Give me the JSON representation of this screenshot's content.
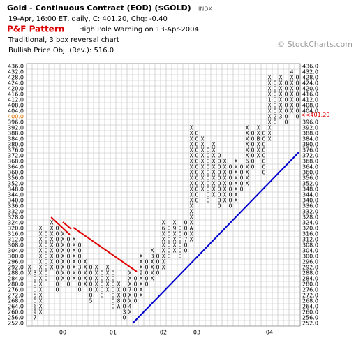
{
  "chart_data": {
    "type": "pnf",
    "title": "Gold - Continuous Contract (EOD) ($GOLD)",
    "exchange": "INDX",
    "subtitle": "19-Apr, 16:00 ET, daily, C: 401.20, Chg: -0.40",
    "pattern_label": "P&F Pattern",
    "pattern": "High Pole Warning on 13-Apr-2004",
    "method": "Traditional, 3 box reversal chart",
    "objective": "Bullish Price Obj. (Rev.): 516.0",
    "credit": "© StockCharts.com",
    "box_size": 4,
    "grid": true,
    "x_color": "#000000",
    "o_color": "#000000",
    "highlight_color": "#e07000",
    "last_price": {
      "value": 401.2,
      "label": "<<401.20"
    },
    "last_price_color": "#dd0000",
    "ylim": [
      252,
      436
    ],
    "yticks": [
      {
        "value": 252,
        "label": "252.0"
      },
      {
        "value": 256,
        "label": "256.0"
      },
      {
        "value": 260,
        "label": "260.0"
      },
      {
        "value": 264,
        "label": "264.0"
      },
      {
        "value": 268,
        "label": "268.0"
      },
      {
        "value": 272,
        "label": "272.0"
      },
      {
        "value": 276,
        "label": "276.0"
      },
      {
        "value": 280,
        "label": "280.0"
      },
      {
        "value": 284,
        "label": "284.0"
      },
      {
        "value": 288,
        "label": "288.0"
      },
      {
        "value": 292,
        "label": "292.0"
      },
      {
        "value": 296,
        "label": "296.0"
      },
      {
        "value": 300,
        "label": "300.0"
      },
      {
        "value": 304,
        "label": "304.0"
      },
      {
        "value": 308,
        "label": "308.0"
      },
      {
        "value": 312,
        "label": "312.0"
      },
      {
        "value": 316,
        "label": "316.0"
      },
      {
        "value": 320,
        "label": "320.0"
      },
      {
        "value": 324,
        "label": "324.0"
      },
      {
        "value": 328,
        "label": "328.0"
      },
      {
        "value": 332,
        "label": "332.0"
      },
      {
        "value": 336,
        "label": "336.0"
      },
      {
        "value": 340,
        "label": "340.0"
      },
      {
        "value": 344,
        "label": "344.0"
      },
      {
        "value": 348,
        "label": "348.0"
      },
      {
        "value": 352,
        "label": "352.0"
      },
      {
        "value": 356,
        "label": "356.0"
      },
      {
        "value": 360,
        "label": "360.0"
      },
      {
        "value": 364,
        "label": "364.0"
      },
      {
        "value": 368,
        "label": "368.0"
      },
      {
        "value": 372,
        "label": "372.0"
      },
      {
        "value": 376,
        "label": "376.0"
      },
      {
        "value": 380,
        "label": "380.0"
      },
      {
        "value": 384,
        "label": "384.0"
      },
      {
        "value": 388,
        "label": "388.0"
      },
      {
        "value": 392,
        "label": "392.0"
      },
      {
        "value": 396,
        "label": "396.0"
      },
      {
        "value": 400,
        "label": "400.0"
      },
      {
        "value": 404,
        "label": "404.0"
      },
      {
        "value": 408,
        "label": "408.0"
      },
      {
        "value": 412,
        "label": "412.0"
      },
      {
        "value": 416,
        "label": "416.0"
      },
      {
        "value": 420,
        "label": "420.0"
      },
      {
        "value": 424,
        "label": "424.0"
      },
      {
        "value": 428,
        "label": "428.0"
      },
      {
        "value": 432,
        "label": "432.0"
      },
      {
        "value": 436,
        "label": "436.0"
      }
    ],
    "columns": [
      {
        "kind": "X",
        "low": 288,
        "high": 292
      },
      {
        "kind": "O",
        "low": 256,
        "high": 288
      },
      {
        "kind": "X",
        "low": 260,
        "high": 320
      },
      {
        "kind": "O",
        "low": 284,
        "high": 316
      },
      {
        "kind": "X",
        "low": 292,
        "high": 324
      },
      {
        "kind": "O",
        "low": 276,
        "high": 320
      },
      {
        "kind": "X",
        "low": 284,
        "high": 316
      },
      {
        "kind": "O",
        "low": 280,
        "high": 312
      },
      {
        "kind": "X",
        "low": 284,
        "high": 312
      },
      {
        "kind": "O",
        "low": 276,
        "high": 308
      },
      {
        "kind": "X",
        "low": 280,
        "high": 296
      },
      {
        "kind": "O",
        "low": 268,
        "high": 292
      },
      {
        "kind": "X",
        "low": 276,
        "high": 292
      },
      {
        "kind": "O",
        "low": 272,
        "high": 288
      },
      {
        "kind": "X",
        "low": 276,
        "high": 292
      },
      {
        "kind": "O",
        "low": 264,
        "high": 288
      },
      {
        "kind": "X",
        "low": 264,
        "high": 280
      },
      {
        "kind": "O",
        "low": 256,
        "high": 276
      },
      {
        "kind": "X",
        "low": 260,
        "high": 288
      },
      {
        "kind": "O",
        "low": 268,
        "high": 284
      },
      {
        "kind": "X",
        "low": 272,
        "high": 300
      },
      {
        "kind": "O",
        "low": 280,
        "high": 296
      },
      {
        "kind": "X",
        "low": 284,
        "high": 304
      },
      {
        "kind": "O",
        "low": 288,
        "high": 300
      },
      {
        "kind": "X",
        "low": 292,
        "high": 324
      },
      {
        "kind": "O",
        "low": 300,
        "high": 320
      },
      {
        "kind": "X",
        "low": 304,
        "high": 324
      },
      {
        "kind": "O",
        "low": 300,
        "high": 320
      },
      {
        "kind": "O",
        "low": 304,
        "high": 324
      },
      {
        "kind": "X",
        "low": 312,
        "high": 392
      },
      {
        "kind": "O",
        "low": 340,
        "high": 388
      },
      {
        "kind": "X",
        "low": 348,
        "high": 384
      },
      {
        "kind": "O",
        "low": 340,
        "high": 376
      },
      {
        "kind": "X",
        "low": 344,
        "high": 380
      },
      {
        "kind": "O",
        "low": 336,
        "high": 372
      },
      {
        "kind": "X",
        "low": 340,
        "high": 368
      },
      {
        "kind": "O",
        "low": 336,
        "high": 364
      },
      {
        "kind": "X",
        "low": 340,
        "high": 368
      },
      {
        "kind": "O",
        "low": 348,
        "high": 364
      },
      {
        "kind": "X",
        "low": 352,
        "high": 392
      },
      {
        "kind": "O",
        "low": 364,
        "high": 388
      },
      {
        "kind": "X",
        "low": 372,
        "high": 392
      },
      {
        "kind": "O",
        "low": 360,
        "high": 388
      },
      {
        "kind": "X",
        "low": 384,
        "high": 428
      },
      {
        "kind": "O",
        "low": 396,
        "high": 424
      },
      {
        "kind": "X",
        "low": 400,
        "high": 428
      },
      {
        "kind": "O",
        "low": 396,
        "high": 424
      },
      {
        "kind": "X",
        "low": 404,
        "high": 432
      },
      {
        "kind": "O",
        "low": 400,
        "high": 428
      }
    ],
    "month_marks": [
      {
        "column": 1,
        "price": 288,
        "label": "3"
      },
      {
        "column": 1,
        "price": 272,
        "label": "5"
      },
      {
        "column": 1,
        "price": 264,
        "label": "6"
      },
      {
        "column": 1,
        "price": 260,
        "label": "9"
      },
      {
        "column": 1,
        "price": 256,
        "label": "7"
      },
      {
        "column": 9,
        "price": 292,
        "label": "3"
      },
      {
        "column": 11,
        "price": 268,
        "label": "5"
      },
      {
        "column": 16,
        "price": 268,
        "label": "8"
      },
      {
        "column": 16,
        "price": 264,
        "label": "A"
      },
      {
        "column": 17,
        "price": 260,
        "label": "3"
      },
      {
        "column": 18,
        "price": 264,
        "label": "4"
      },
      {
        "column": 18,
        "price": 276,
        "label": "7"
      },
      {
        "column": 20,
        "price": 288,
        "label": "9"
      },
      {
        "column": 22,
        "price": 300,
        "label": "3"
      },
      {
        "column": 24,
        "price": 320,
        "label": "6"
      },
      {
        "column": 26,
        "price": 320,
        "label": "9"
      },
      {
        "column": 28,
        "price": 312,
        "label": "7"
      },
      {
        "column": 29,
        "price": 320,
        "label": "A"
      },
      {
        "column": 39,
        "price": 368,
        "label": "6"
      },
      {
        "column": 41,
        "price": 384,
        "label": "B"
      },
      {
        "column": 43,
        "price": 412,
        "label": "1"
      },
      {
        "column": 44,
        "price": 400,
        "label": "2"
      },
      {
        "column": 45,
        "price": 400,
        "label": "3"
      },
      {
        "column": 47,
        "price": 432,
        "label": "4"
      }
    ],
    "x_labels": [
      {
        "column": 6,
        "label": "00"
      },
      {
        "column": 15,
        "label": "01"
      },
      {
        "column": 24,
        "label": "02"
      },
      {
        "column": 30,
        "label": "03"
      },
      {
        "column": 43,
        "label": "04"
      }
    ],
    "trend_lines": [
      {
        "color": "#e00000",
        "from": [
          3.9,
          328
        ],
        "to": [
          7.25,
          315.5
        ]
      },
      {
        "color": "#e00000",
        "from": [
          6,
          324.5
        ],
        "to": [
          7.5,
          319.5
        ]
      },
      {
        "color": "#e00000",
        "from": [
          7.9,
          320.5
        ],
        "to": [
          19.25,
          289
        ]
      },
      {
        "color": "#0000cc",
        "from": [
          18.5,
          252
        ],
        "to": [
          48.25,
          374.5
        ]
      }
    ]
  }
}
